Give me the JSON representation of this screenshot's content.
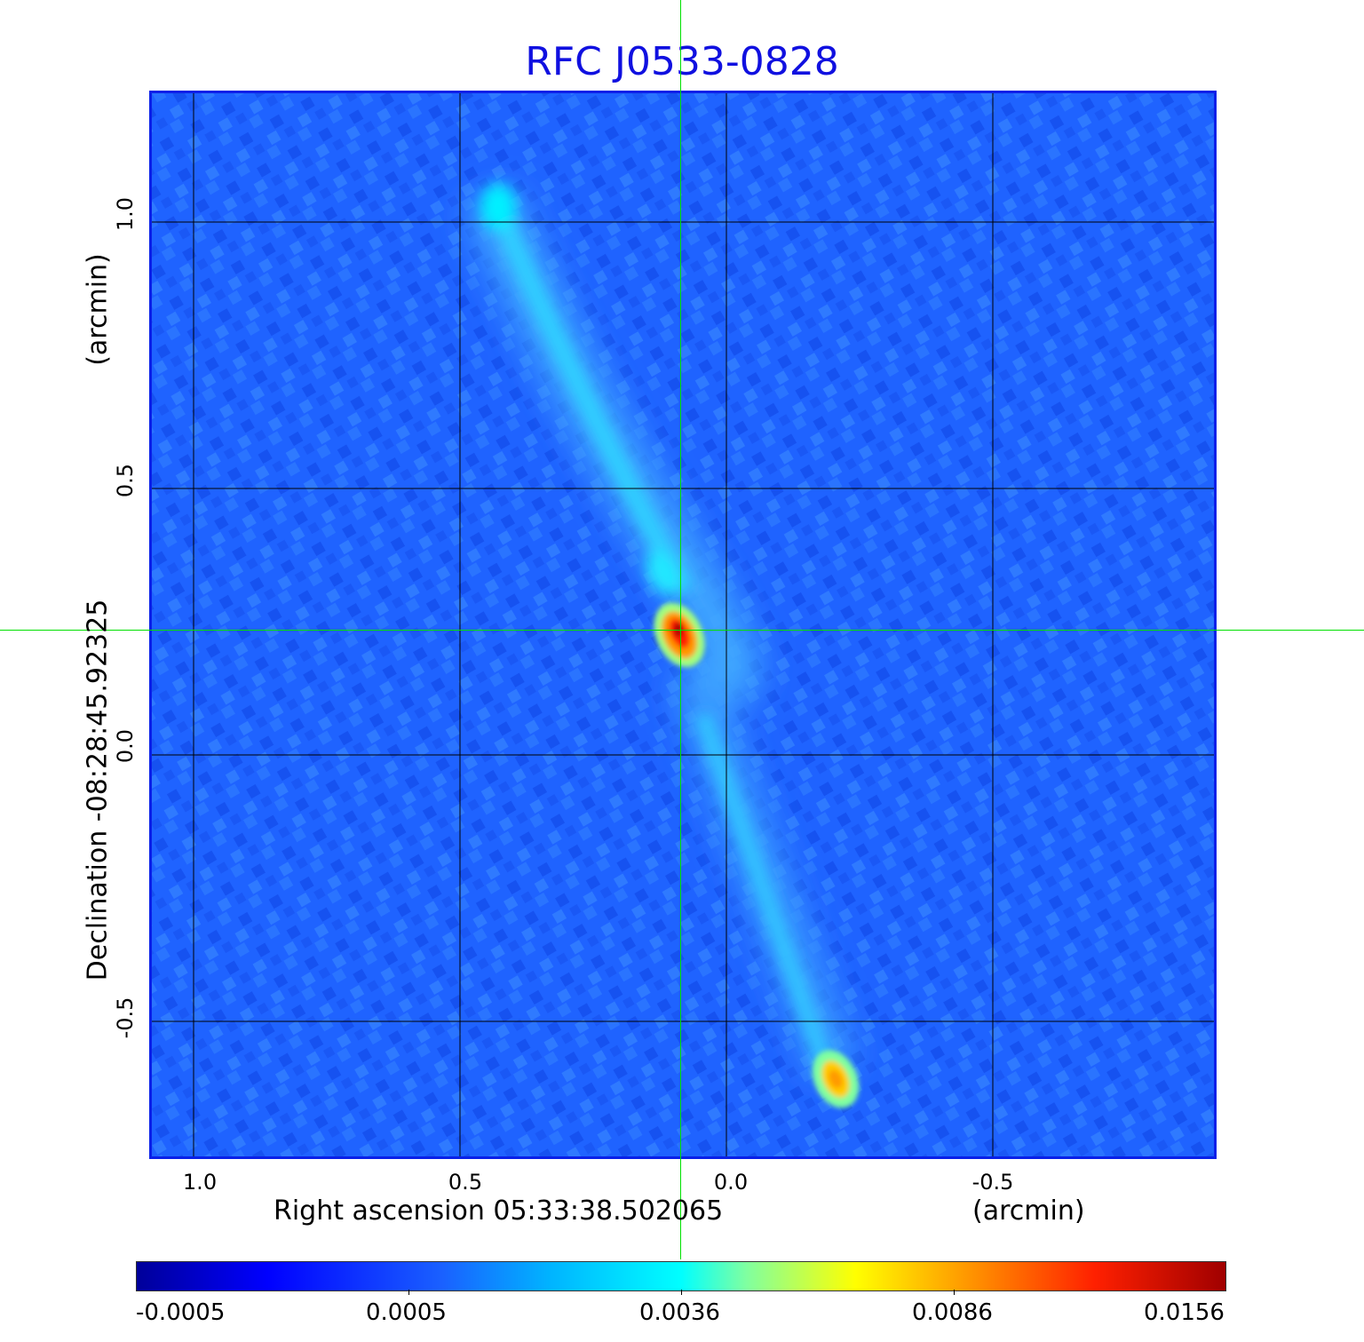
{
  "title": "RFC J0533-0828",
  "x_axis": {
    "label": "Right ascension  05:33:38.502065",
    "unit": "(arcmin)",
    "ticks": [
      "1.0",
      "0.5",
      "0.0",
      "-0.5"
    ]
  },
  "y_axis": {
    "label": "Declination  -08:28:45.92325",
    "unit": "(arcmin)",
    "ticks": [
      "1.0",
      "0.5",
      "0.0",
      "-0.5"
    ]
  },
  "colorbar": {
    "ticks": [
      "-0.0005",
      "0.0005",
      "0.0036",
      "0.0086",
      "0.0156"
    ],
    "colors": [
      "#00009a",
      "#0000ff",
      "#1a60ff",
      "#00b4ff",
      "#00ffff",
      "#80ffa0",
      "#ffff00",
      "#ff9a00",
      "#ff2000",
      "#a00000"
    ]
  },
  "colors": {
    "title": "#1010e0",
    "frame": "#0a20e8",
    "crosshair": "#00e000",
    "grid": "#000000"
  }
}
